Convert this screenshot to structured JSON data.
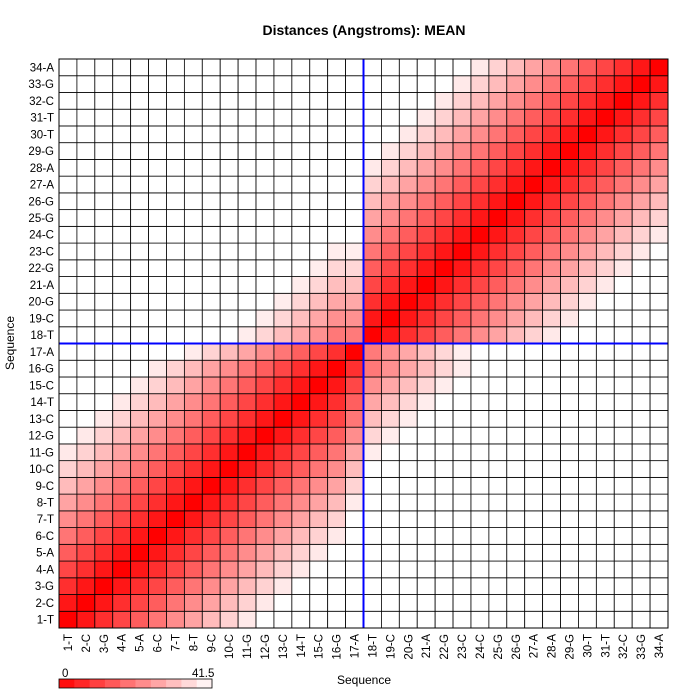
{
  "chart_data": {
    "type": "heatmap",
    "title": "Distances (Angstroms):  MEAN",
    "xlabel": "Sequence",
    "ylabel": "Sequence",
    "categories": [
      "1-T",
      "2-C",
      "3-G",
      "4-A",
      "5-A",
      "6-C",
      "7-T",
      "8-T",
      "9-C",
      "10-C",
      "11-G",
      "12-G",
      "13-C",
      "14-T",
      "15-C",
      "16-G",
      "17-A",
      "18-T",
      "19-C",
      "20-G",
      "21-A",
      "22-G",
      "23-C",
      "24-C",
      "25-G",
      "26-G",
      "27-A",
      "28-A",
      "29-G",
      "30-T",
      "31-T",
      "32-C",
      "33-G",
      "34-A"
    ],
    "value_range": [
      0,
      41.5
    ],
    "colorbar": {
      "min_label": "0",
      "max_label": "41.5",
      "low_color": "#ff0000",
      "high_color": "#ffffff"
    },
    "value_model": "approximate: symmetric matrix, distance grows with |i-j| and is larger across the 17/18 boundary",
    "highlight": {
      "after_category": "17-A",
      "color": "#0000ff"
    }
  }
}
